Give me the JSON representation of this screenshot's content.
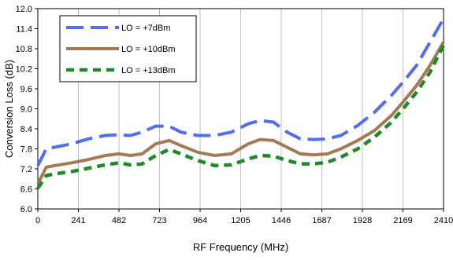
{
  "chart_data": {
    "type": "line",
    "title": "",
    "xlabel": "RF Frequency (MHz)",
    "ylabel": "Conversion Loss (dB)",
    "xlim": [
      0,
      2410
    ],
    "ylim": [
      6.0,
      12.0
    ],
    "x_ticks": [
      "0",
      "241",
      "482",
      "723",
      "964",
      "1205",
      "1446",
      "1687",
      "1928",
      "2169",
      "2410"
    ],
    "y_ticks": [
      "6.0",
      "6.6",
      "7.2",
      "7.8",
      "8.4",
      "9.0",
      "9.6",
      "10.2",
      "10.8",
      "11.4",
      "12.0"
    ],
    "grid": "vertical",
    "legend_position": "top-left",
    "series": [
      {
        "name": "LO = +7dBm",
        "color": "#4F6FEF",
        "style": "long-dash",
        "x": [
          0,
          50,
          100,
          200,
          300,
          400,
          482,
          550,
          620,
          700,
          780,
          850,
          950,
          1050,
          1150,
          1250,
          1320,
          1400,
          1480,
          1560,
          1640,
          1720,
          1800,
          1900,
          2000,
          2100,
          2169,
          2250,
          2330,
          2410
        ],
        "y": [
          7.3,
          7.8,
          7.85,
          7.95,
          8.1,
          8.2,
          8.22,
          8.2,
          8.3,
          8.48,
          8.48,
          8.3,
          8.2,
          8.2,
          8.3,
          8.55,
          8.65,
          8.6,
          8.3,
          8.1,
          8.08,
          8.1,
          8.2,
          8.5,
          8.9,
          9.4,
          9.8,
          10.3,
          11.0,
          11.7
        ]
      },
      {
        "name": "LO = +10dBm",
        "color": "#A47A55",
        "style": "solid",
        "x": [
          0,
          50,
          100,
          200,
          300,
          400,
          482,
          550,
          620,
          700,
          780,
          850,
          950,
          1050,
          1150,
          1250,
          1320,
          1400,
          1480,
          1560,
          1640,
          1720,
          1800,
          1900,
          2000,
          2100,
          2169,
          2250,
          2330,
          2410
        ],
        "y": [
          6.75,
          7.25,
          7.3,
          7.38,
          7.48,
          7.6,
          7.65,
          7.6,
          7.65,
          7.95,
          8.05,
          7.9,
          7.7,
          7.6,
          7.65,
          7.95,
          8.08,
          8.05,
          7.85,
          7.65,
          7.62,
          7.65,
          7.8,
          8.05,
          8.35,
          8.8,
          9.2,
          9.7,
          10.3,
          11.0
        ]
      },
      {
        "name": "LO = +13dBm",
        "color": "#1E8A2A",
        "style": "short-dash",
        "x": [
          0,
          50,
          100,
          200,
          300,
          400,
          482,
          550,
          620,
          700,
          780,
          850,
          950,
          1050,
          1150,
          1250,
          1320,
          1400,
          1480,
          1560,
          1640,
          1720,
          1800,
          1900,
          2000,
          2100,
          2169,
          2250,
          2330,
          2410
        ],
        "y": [
          6.62,
          7.0,
          7.05,
          7.12,
          7.22,
          7.32,
          7.38,
          7.32,
          7.35,
          7.6,
          7.78,
          7.65,
          7.45,
          7.3,
          7.32,
          7.5,
          7.6,
          7.58,
          7.45,
          7.35,
          7.35,
          7.4,
          7.55,
          7.8,
          8.15,
          8.6,
          9.0,
          9.5,
          10.1,
          10.9
        ]
      }
    ]
  }
}
